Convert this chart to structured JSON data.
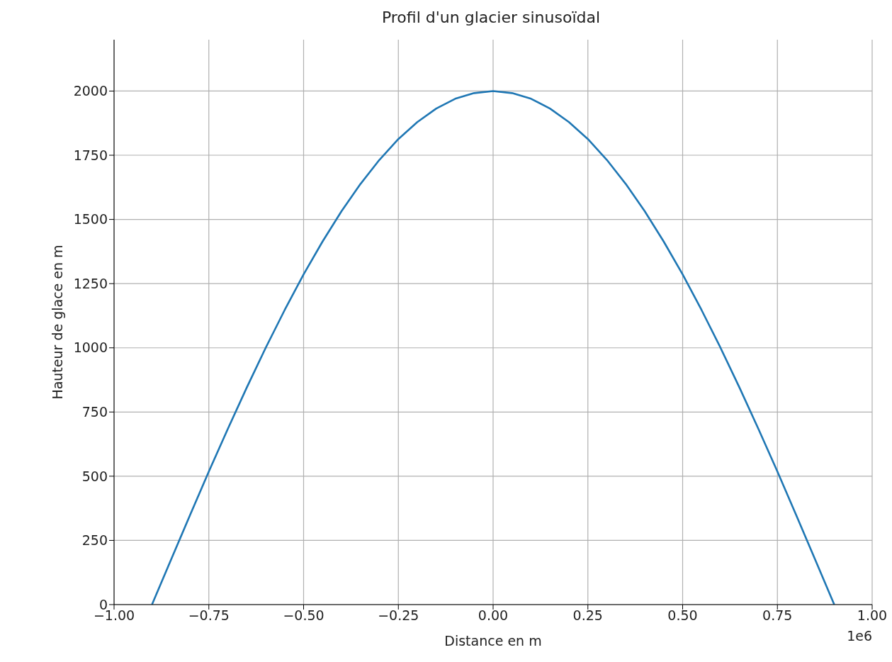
{
  "chart_data": {
    "type": "line",
    "title": "Profil d'un glacier sinusoïdal",
    "xlabel": "Distance en m",
    "ylabel": "Hauteur de glace en m",
    "annotations": [
      "1e6"
    ],
    "x": [
      -0.9,
      -0.85,
      -0.8,
      -0.75,
      -0.7,
      -0.65,
      -0.6,
      -0.55,
      -0.5,
      -0.45,
      -0.4,
      -0.35,
      -0.3,
      -0.25,
      -0.2,
      -0.15,
      -0.1,
      -0.05,
      0,
      0.05,
      0.1,
      0.15,
      0.2,
      0.25,
      0.3,
      0.35,
      0.4,
      0.45,
      0.5,
      0.55,
      0.6,
      0.65,
      0.7,
      0.75,
      0.8,
      0.85,
      0.9
    ],
    "series": [
      {
        "color": "#1f77b4",
        "values": [
          0,
          174,
          347,
          518,
          684,
          845,
          1000,
          1147,
          1286,
          1414,
          1532,
          1638,
          1732,
          1813,
          1879,
          1932,
          1970,
          1992,
          2000,
          1992,
          1970,
          1932,
          1879,
          1813,
          1732,
          1638,
          1532,
          1414,
          1286,
          1147,
          1000,
          845,
          684,
          518,
          347,
          174,
          0
        ]
      }
    ],
    "xlim": [
      -1,
      1
    ],
    "xticks": [
      {
        "value": -1,
        "label": "−1.00"
      },
      {
        "value": -0.75,
        "label": "−0.75"
      },
      {
        "value": -0.5,
        "label": "−0.50"
      },
      {
        "value": -0.25,
        "label": "−0.25"
      },
      {
        "value": 0,
        "label": "0.00"
      },
      {
        "value": 0.25,
        "label": "0.25"
      },
      {
        "value": 0.5,
        "label": "0.50"
      },
      {
        "value": 0.75,
        "label": "0.75"
      },
      {
        "value": 1,
        "label": "1.00"
      }
    ],
    "ylim": [
      0,
      2200
    ],
    "yticks": [
      0,
      250,
      500,
      750,
      1000,
      1250,
      1500,
      1750,
      2000
    ],
    "grid": true,
    "marker": "none",
    "line_style": "solid"
  }
}
